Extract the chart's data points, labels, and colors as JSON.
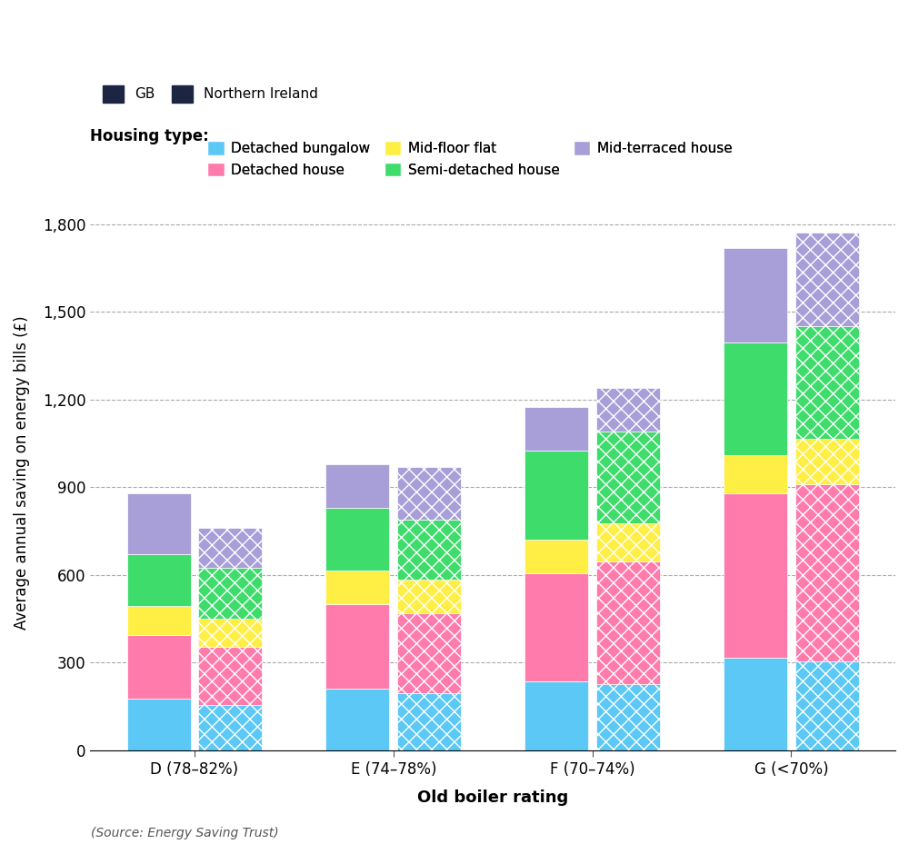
{
  "categories": [
    "D (78–82%)",
    "E (74–78%)",
    "F (70–74%)",
    "G (<70%)"
  ],
  "housing_types": [
    "Detached bungalow",
    "Detached house",
    "Mid-floor flat",
    "Semi-detached house",
    "Mid-terraced house"
  ],
  "colors": [
    "#5BC8F5",
    "#FF7BAC",
    "#FFEE44",
    "#3DDC6B",
    "#A89FD8"
  ],
  "gb_values": [
    [
      175,
      220,
      100,
      175,
      210
    ],
    [
      210,
      290,
      115,
      215,
      150
    ],
    [
      235,
      370,
      115,
      305,
      150
    ],
    [
      315,
      565,
      130,
      385,
      325
    ]
  ],
  "ni_values": [
    [
      155,
      200,
      95,
      175,
      135
    ],
    [
      195,
      275,
      115,
      205,
      180
    ],
    [
      225,
      420,
      130,
      315,
      150
    ],
    [
      305,
      605,
      155,
      385,
      320
    ]
  ],
  "ylabel": "Average annual saving on energy bills (£)",
  "xlabel": "Old boiler rating",
  "source": "(Source: Energy Saving Trust)",
  "yticks": [
    0,
    300,
    600,
    900,
    1200,
    1500,
    1800
  ],
  "ylim": [
    0,
    1900
  ],
  "bar_width": 0.32,
  "gb_legend_color": "#1C2642",
  "ni_legend_color": "#1C2642"
}
